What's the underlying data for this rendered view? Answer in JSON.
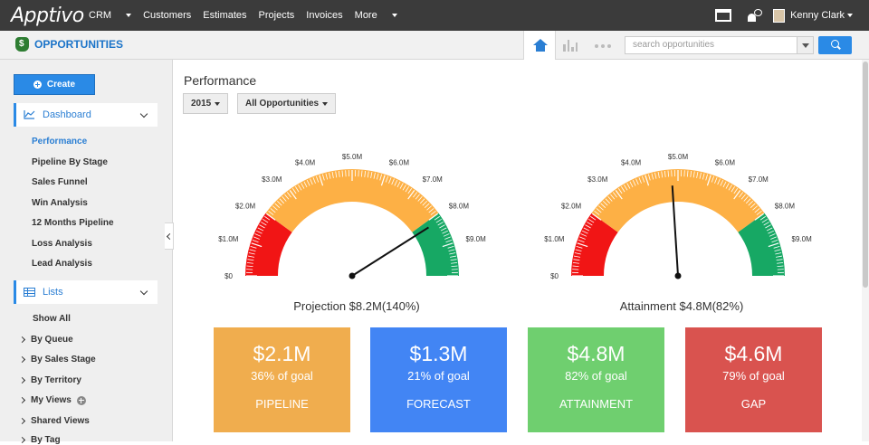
{
  "topbar": {
    "logo": "Apptivo",
    "nav": [
      "CRM",
      "Customers",
      "Estimates",
      "Projects",
      "Invoices",
      "More"
    ],
    "user": "Kenny Clark"
  },
  "app": {
    "title": "OPPORTUNITIES",
    "search_placeholder": "search opportunities"
  },
  "sidebar": {
    "create_label": "Create",
    "dashboard_label": "Dashboard",
    "dashboard_items": [
      "Performance",
      "Pipeline By Stage",
      "Sales Funnel",
      "Win Analysis",
      "12 Months Pipeline",
      "Loss Analysis",
      "Lead Analysis"
    ],
    "lists_label": "Lists",
    "show_all": "Show All",
    "list_items": [
      "By Queue",
      "By Sales Stage",
      "By Territory",
      "My Views",
      "Shared Views",
      "By Tag"
    ]
  },
  "main": {
    "title": "Performance",
    "year_filter": "2015",
    "scope_filter": "All Opportunities"
  },
  "gauges": [
    {
      "title": "Projection $8.2M(140%)",
      "value_millions": 8.2,
      "needle_color": "#111111",
      "ticks": [
        "$0",
        "$1.0M",
        "$2.0M",
        "$3.0M",
        "$4.0M",
        "$5.0M",
        "$6.0M",
        "$7.0M",
        "$8.0M",
        "$9.0M"
      ],
      "max_millions": 10
    },
    {
      "title": "Attainment $4.8M(82%)",
      "value_millions": 4.8,
      "needle_color": "#111111",
      "ticks": [
        "$0",
        "$1.0M",
        "$2.0M",
        "$3.0M",
        "$4.0M",
        "$5.0M",
        "$6.0M",
        "$7.0M",
        "$8.0M",
        "$9.0M"
      ],
      "max_millions": 10
    }
  ],
  "gauge_bands": {
    "red": "#f11515",
    "orange": "#fdb045",
    "green": "#17a864",
    "red_to_millions": 2,
    "orange_to_millions": 8
  },
  "cards": [
    {
      "amount": "$2.1M",
      "percent": "36% of goal",
      "label": "PIPELINE",
      "color": "#f0ad4e"
    },
    {
      "amount": "$1.3M",
      "percent": "21% of goal",
      "label": "FORECAST",
      "color": "#4285f4"
    },
    {
      "amount": "$4.8M",
      "percent": "82% of goal",
      "label": "ATTAINMENT",
      "color": "#6fcf6f"
    },
    {
      "amount": "$4.6M",
      "percent": "79% of goal",
      "label": "GAP",
      "color": "#d9534f"
    }
  ]
}
